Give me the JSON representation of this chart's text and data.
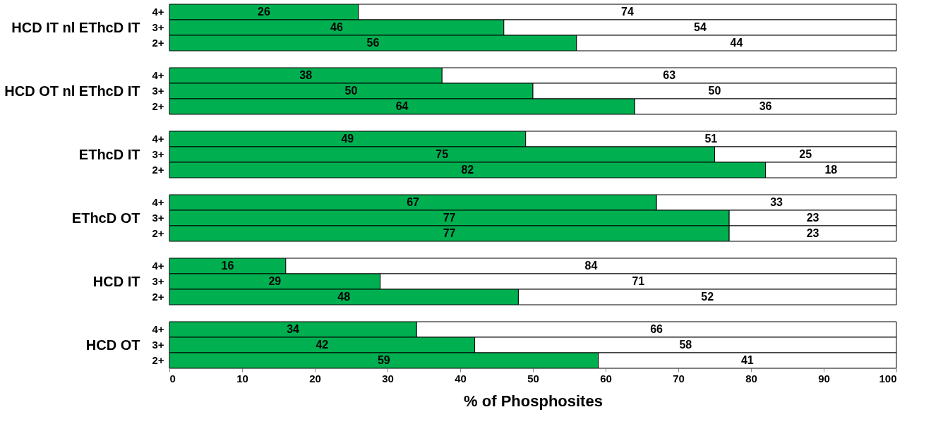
{
  "chart_data": [
    {
      "type": "bar",
      "orientation": "horizontal",
      "stacked": true,
      "ylabel": "HCD IT nl EThcD IT",
      "categories": [
        "4+",
        "3+",
        "2+"
      ],
      "xlim": [
        0,
        100
      ],
      "tick_labels": "y",
      "legend": false,
      "data_labels": true,
      "series": [
        {
          "color": "#00b050",
          "values": [
            26,
            46,
            56
          ]
        },
        {
          "color": "#ffffff",
          "values": [
            74,
            54,
            44
          ]
        }
      ]
    },
    {
      "type": "bar",
      "orientation": "horizontal",
      "stacked": true,
      "ylabel": "HCD OT nl EThcD IT",
      "categories": [
        "4+",
        "3+",
        "2+"
      ],
      "xlim": [
        0,
        100
      ],
      "tick_labels": "y",
      "legend": false,
      "series": [
        {
          "color": "#00b050",
          "values": [
            37.5,
            50,
            64
          ],
          "value_labels": [
            "38",
            "50",
            "64"
          ]
        },
        {
          "color": "#ffffff",
          "values": [
            62.5,
            50,
            36
          ],
          "value_labels": [
            "63",
            "50",
            "36"
          ]
        }
      ]
    },
    {
      "type": "bar",
      "orientation": "horizontal",
      "stacked": true,
      "ylabel": "EThcD IT",
      "categories": [
        "4+",
        "3+",
        "2+"
      ],
      "xlim": [
        0,
        100
      ],
      "tick_labels": "y",
      "legend": false,
      "data_labels": true,
      "series": [
        {
          "color": "#00b050",
          "values": [
            49,
            75,
            82
          ]
        },
        {
          "color": "#ffffff",
          "values": [
            51,
            25,
            18
          ]
        }
      ]
    },
    {
      "type": "bar",
      "orientation": "horizontal",
      "stacked": true,
      "ylabel": "EThcD OT",
      "categories": [
        "4+",
        "3+",
        "2+"
      ],
      "xlim": [
        0,
        100
      ],
      "tick_labels": "y",
      "legend": false,
      "data_labels": true,
      "series": [
        {
          "color": "#00b050",
          "values": [
            67,
            77,
            77
          ]
        },
        {
          "color": "#ffffff",
          "values": [
            33,
            23,
            23
          ]
        }
      ]
    },
    {
      "type": "bar",
      "orientation": "horizontal",
      "stacked": true,
      "ylabel": "HCD IT",
      "categories": [
        "4+",
        "3+",
        "2+"
      ],
      "xlim": [
        0,
        100
      ],
      "tick_labels": "y",
      "legend": false,
      "data_labels": true,
      "series": [
        {
          "color": "#00b050",
          "values": [
            16,
            29,
            48
          ]
        },
        {
          "color": "#ffffff",
          "values": [
            84,
            71,
            52
          ]
        }
      ]
    },
    {
      "type": "bar",
      "orientation": "horizontal",
      "stacked": true,
      "ylabel": "HCD OT",
      "xlabel": "% of Phosphosites",
      "categories": [
        "4+",
        "3+",
        "2+"
      ],
      "xlim": [
        0,
        100
      ],
      "xticks": [
        0,
        10,
        20,
        30,
        40,
        50,
        60,
        70,
        80,
        90,
        100
      ],
      "grid": false,
      "legend": false,
      "data_labels": true,
      "series": [
        {
          "color": "#00b050",
          "values": [
            34,
            42,
            59
          ]
        },
        {
          "color": "#ffffff",
          "values": [
            66,
            58,
            41
          ]
        }
      ]
    }
  ]
}
